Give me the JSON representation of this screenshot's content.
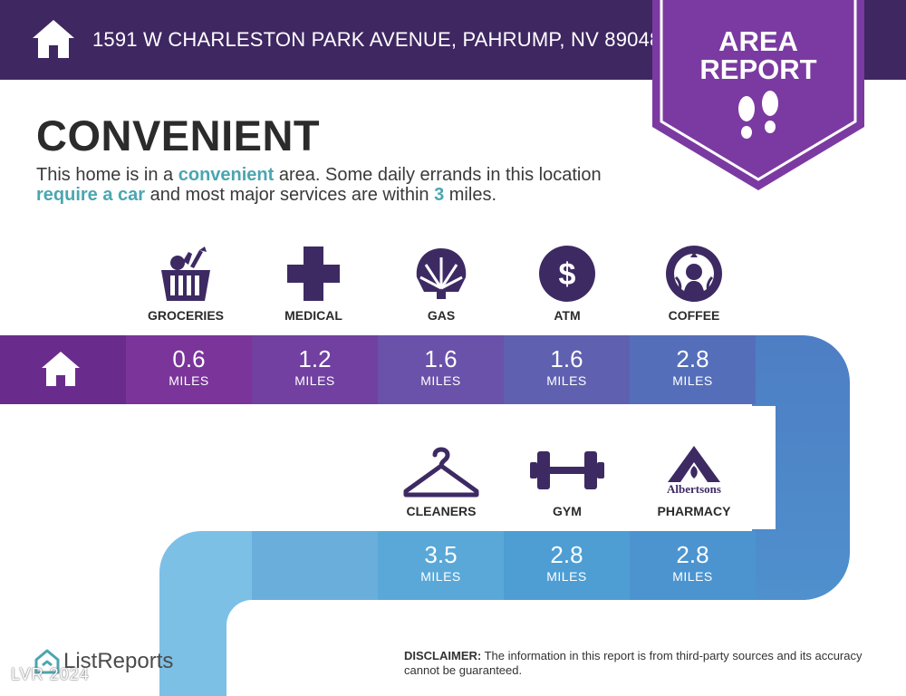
{
  "header": {
    "address": "1591 W CHARLESTON PARK AVENUE, PAHRUMP, NV 89048",
    "home_icon": "house-icon"
  },
  "badge": {
    "line1": "AREA",
    "line2": "REPORT",
    "icon": "footprints-icon",
    "color": "#7b3aa1"
  },
  "main": {
    "heading": "CONVENIENT",
    "description": {
      "p1": "This home is in a ",
      "h1": "convenient",
      "p2": " area. Some daily errands in this location ",
      "h2": "require a car",
      "p3": " and most major services are within ",
      "h3": "3",
      "p4": " miles."
    }
  },
  "amenities_top": [
    {
      "label": "GROCERIES",
      "icon": "grocery-basket-icon",
      "distance": "0.6",
      "unit": "MILES"
    },
    {
      "label": "MEDICAL",
      "icon": "medical-cross-icon",
      "distance": "1.2",
      "unit": "MILES"
    },
    {
      "label": "GAS",
      "icon": "shell-gas-icon",
      "distance": "1.6",
      "unit": "MILES"
    },
    {
      "label": "ATM",
      "icon": "dollar-coin-icon",
      "distance": "1.6",
      "unit": "MILES"
    },
    {
      "label": "COFFEE",
      "icon": "starbucks-logo-icon",
      "distance": "2.8",
      "unit": "MILES"
    }
  ],
  "amenities_bottom": [
    {
      "label": "CLEANERS",
      "icon": "hanger-icon",
      "distance": "3.5",
      "unit": "MILES"
    },
    {
      "label": "GYM",
      "icon": "dumbbell-icon",
      "distance": "2.8",
      "unit": "MILES"
    },
    {
      "label": "PHARMACY",
      "icon": "albertsons-logo-icon",
      "logo_text": "Albertsons",
      "distance": "2.8",
      "unit": "MILES"
    }
  ],
  "colors": {
    "header_bg": "#3f2762",
    "icon_purple": "#3d2a63",
    "highlight": "#4aa6b0"
  },
  "footer": {
    "brand": "ListReports",
    "watermark": "LVR 2024",
    "disclaimer_label": "DISCLAIMER:",
    "disclaimer_text": " The information in this report is from third-party sources and its accuracy cannot be guaranteed."
  }
}
